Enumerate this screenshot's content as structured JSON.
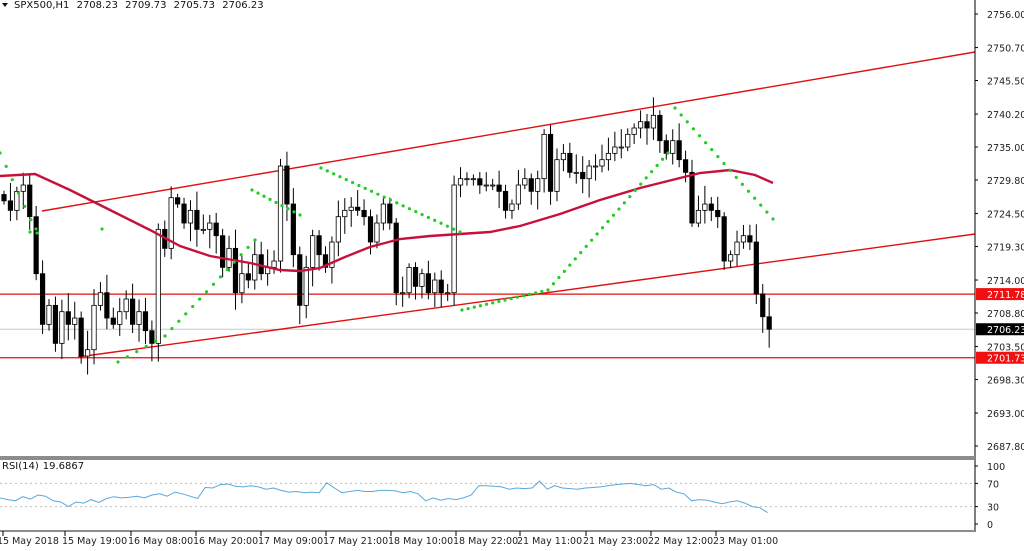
{
  "header": {
    "symbol": "SPX500,H1",
    "open": "2708.23",
    "high": "2709.73",
    "low": "2705.73",
    "close": "2706.23"
  },
  "indicator": {
    "name": "RSI(14)",
    "value": "19.6867"
  },
  "colors": {
    "background": "#ffffff",
    "axis": "#000000",
    "grid": "#c0c0c0",
    "channel_line": "#e01010",
    "moving_average": "#c8103c",
    "psar_dots": "#22cc22",
    "rsi_line": "#5aa8dc",
    "price_label_red": "#f01010",
    "price_label_black": "#000000",
    "bull_candle": "#ffffff",
    "bear_candle": "#000000"
  },
  "chart_data": [
    {
      "type": "candlestick",
      "title": "SPX500,H1",
      "ohlc_current": {
        "open": 2708.23,
        "high": 2709.73,
        "low": 2705.73,
        "close": 2706.23
      },
      "ylim": [
        2684.5,
        2758.5
      ],
      "y_ticks": [
        "2756.00",
        "2750.70",
        "2745.50",
        "2740.20",
        "2735.00",
        "2729.80",
        "2724.50",
        "2719.30",
        "2714.00",
        "2708.80",
        "2703.50",
        "2698.30",
        "2693.00",
        "2687.80"
      ],
      "x_ticks": [
        "15 May 2018",
        "15 May 19:00",
        "16 May 08:00",
        "16 May 20:00",
        "17 May 09:00",
        "17 May 21:00",
        "18 May 10:00",
        "18 May 22:00",
        "21 May 11:00",
        "21 May 23:00",
        "22 May 12:00",
        "23 May 01:00"
      ],
      "price_labels": [
        {
          "value": "2711.78",
          "style": "red",
          "meaning": "horizontal resistance line"
        },
        {
          "value": "2706.23",
          "style": "black",
          "meaning": "current bid"
        },
        {
          "value": "2701.73",
          "style": "red",
          "meaning": "horizontal support line"
        }
      ],
      "horizontal_lines": [
        2711.78,
        2701.73
      ],
      "channel": {
        "upper": [
          {
            "x": "15 May 2018 +1h",
            "y": 2725.9
          },
          {
            "x": "right edge",
            "y": 2749.9
          }
        ],
        "lower": [
          {
            "x": "15 May 18:00",
            "y": 2701.7
          },
          {
            "x": "right edge",
            "y": 2719.6
          }
        ]
      },
      "series": [
        {
          "name": "Close (approx, hourly)",
          "values": [
            2726.5,
            2725.0,
            2728.0,
            2729.0,
            2724.0,
            2715.0,
            2707.0,
            2710.0,
            2704.0,
            2709.0,
            2707.0,
            2708.0,
            2702.0,
            2703.0,
            2710.0,
            2712.0,
            2708.0,
            2707.0,
            2709.0,
            2711.0,
            2707.0,
            2709.0,
            2706.0,
            2704.0,
            2722.0,
            2719.0,
            2727.0,
            2726.0,
            2723.0,
            2725.0,
            2722.0,
            2722.0,
            2723.0,
            2721.0,
            2716.0,
            2719.0,
            2712.0,
            2715.0,
            2714.0,
            2718.0,
            2715.0,
            2716.0,
            2717.0,
            2732.0,
            2726.0,
            2718.0,
            2710.0,
            2716.0,
            2721.0,
            2718.0,
            2716.0,
            2720.0,
            2724.0,
            2725.0,
            2725.5,
            2725.0,
            2724.0,
            2720.0,
            2723.0,
            2726.0,
            2723.0,
            2712.0,
            2712.0,
            2716.0,
            2713.0,
            2715.0,
            2712.0,
            2714.0,
            2712.0,
            2712.0,
            2729.0,
            2730.0,
            2730.0,
            2730.0,
            2729.0,
            2729.0,
            2729.0,
            2728.0,
            2725.0,
            2726.0,
            2729.0,
            2730.0,
            2728.0,
            2730.0,
            2737.0,
            2728.0,
            2733.0,
            2734.0,
            2731.0,
            2731.0,
            2730.0,
            2732.0,
            2732.0,
            2733.0,
            2734.0,
            2735.0,
            2735.0,
            2737.0,
            2738.0,
            2739.0,
            2738.0,
            2740.0,
            2736.0,
            2734.0,
            2736.0,
            2733.0,
            2731.0,
            2723.0,
            2725.0,
            2726.0,
            2725.0,
            2724.0,
            2717.0,
            2718.0,
            2720.0,
            2721.0,
            2720.0,
            2711.8,
            2708.2,
            2706.23
          ]
        },
        {
          "name": "Moving Average",
          "values_note": "red curve ~2729 at start, dips to ~2714.5 around 17 May 09:00, rises to ~2731 near 22 May 12:00, ends ~2729"
        },
        {
          "name": "Parabolic SAR",
          "values_note": "green dots above price during declines, below during rallies"
        }
      ]
    },
    {
      "type": "line",
      "title": "RSI(14) 19.6867",
      "ylim": [
        0,
        100
      ],
      "y_ticks": [
        "100",
        "70",
        "30",
        "0"
      ],
      "levels": [
        70,
        30
      ],
      "series": [
        {
          "name": "RSI(14)",
          "values": [
            45,
            42,
            40,
            47,
            43,
            50,
            48,
            40,
            38,
            30,
            38,
            36,
            42,
            37,
            44,
            47,
            45,
            46,
            48,
            45,
            50,
            52,
            48,
            55,
            52,
            48,
            44,
            63,
            62,
            68,
            69,
            65,
            64,
            66,
            64,
            60,
            62,
            58,
            55,
            56,
            54,
            55,
            54,
            71,
            62,
            54,
            56,
            58,
            56,
            56,
            58,
            58,
            57,
            54,
            56,
            52,
            40,
            45,
            41,
            44,
            42,
            45,
            50,
            66,
            66,
            65,
            64,
            60,
            62,
            61,
            62,
            74,
            60,
            66,
            62,
            61,
            60,
            62,
            63,
            64,
            66,
            68,
            69,
            70,
            68,
            66,
            68,
            60,
            62,
            55,
            52,
            40,
            42,
            41,
            38,
            35,
            38,
            40,
            36,
            30,
            28,
            19.69
          ]
        }
      ]
    }
  ],
  "price_axis": {
    "ticks": [
      "2756.00",
      "2750.70",
      "2745.50",
      "2740.20",
      "2735.00",
      "2729.80",
      "2724.50",
      "2719.30",
      "2714.00",
      "2708.80",
      "2703.50",
      "2698.30",
      "2693.00",
      "2687.80"
    ],
    "label_resistance": "2711.78",
    "label_current": "2706.23",
    "label_support": "2701.73"
  },
  "rsi_axis": {
    "ticks": [
      "100",
      "70",
      "30",
      "0"
    ]
  },
  "time_axis": {
    "ticks": [
      "15 May 2018",
      "15 May 19:00",
      "16 May 08:00",
      "16 May 20:00",
      "17 May 09:00",
      "17 May 21:00",
      "18 May 10:00",
      "18 May 22:00",
      "21 May 11:00",
      "21 May 23:00",
      "22 May 12:00",
      "23 May 01:00"
    ]
  }
}
